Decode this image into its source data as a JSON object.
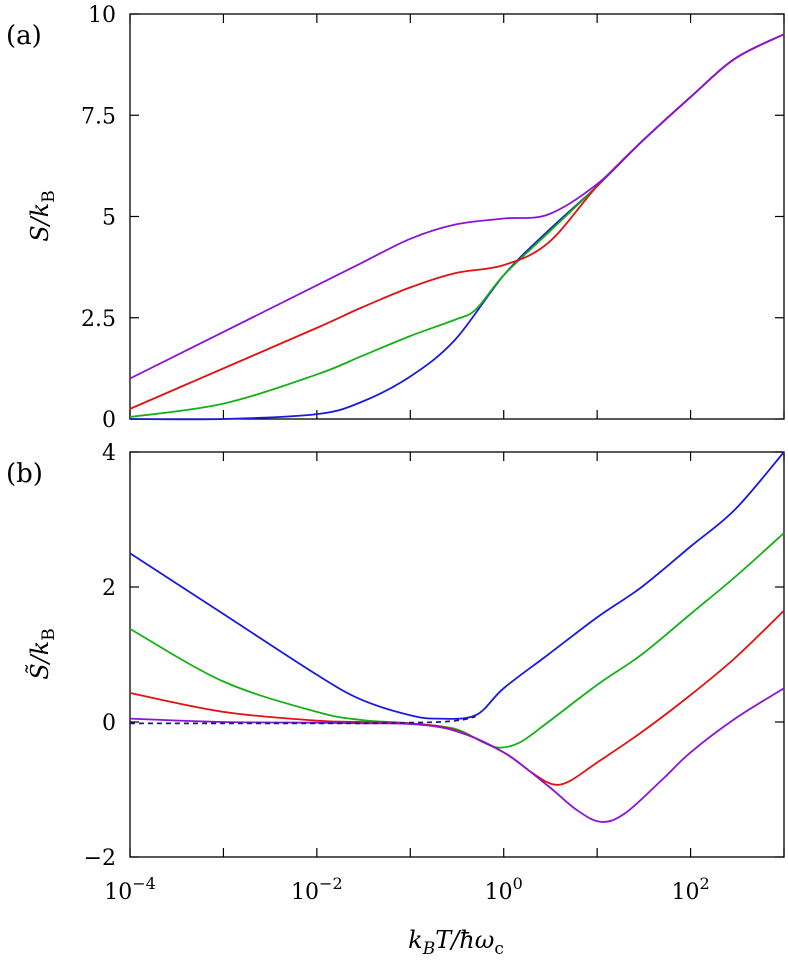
{
  "chart_data": [
    {
      "type": "line",
      "panel_label": "(a)",
      "ylabel": "S/k_B",
      "xscale": "log",
      "xlim": [
        0.0001,
        1000
      ],
      "ylim": [
        0,
        10
      ],
      "yticks": [
        0,
        2.5,
        5,
        7.5,
        10
      ],
      "ytick_labels": [
        "0",
        "2.5",
        "5",
        "7.5",
        "10"
      ],
      "xticks_show_labels": false,
      "grid": false,
      "series": [
        {
          "color": "#1a1adf",
          "x": [
            0.0001,
            0.001,
            0.01,
            0.03,
            0.1,
            0.3,
            1,
            3,
            10,
            30,
            100,
            300,
            1000
          ],
          "y": [
            0.0,
            0.0,
            0.12,
            0.42,
            1.05,
            1.95,
            3.55,
            4.65,
            5.75,
            6.85,
            7.95,
            8.9,
            9.5
          ]
        },
        {
          "color": "#16b016",
          "x": [
            0.0001,
            0.001,
            0.01,
            0.03,
            0.1,
            0.3,
            0.5,
            1,
            3,
            10,
            30,
            100,
            300,
            1000
          ],
          "y": [
            0.05,
            0.38,
            1.1,
            1.55,
            2.05,
            2.45,
            2.7,
            3.55,
            4.6,
            5.75,
            6.85,
            7.95,
            8.9,
            9.5
          ]
        },
        {
          "color": "#e01212",
          "x": [
            0.0001,
            0.001,
            0.01,
            0.03,
            0.1,
            0.3,
            1,
            3,
            10,
            30,
            100,
            300,
            1000
          ],
          "y": [
            0.25,
            1.25,
            2.25,
            2.75,
            3.25,
            3.6,
            3.8,
            4.35,
            5.75,
            6.85,
            7.95,
            8.9,
            9.5
          ]
        },
        {
          "color": "#8a14d8",
          "x": [
            0.0001,
            0.001,
            0.01,
            0.03,
            0.1,
            0.3,
            1,
            3,
            10,
            30,
            100,
            300,
            1000
          ],
          "y": [
            1.0,
            2.15,
            3.3,
            3.85,
            4.45,
            4.8,
            4.95,
            5.05,
            5.8,
            6.85,
            7.95,
            8.9,
            9.5
          ]
        }
      ]
    },
    {
      "type": "line",
      "panel_label": "(b)",
      "ylabel": "S̃/k_B",
      "xlabel": "k_BT/ħω_c",
      "xscale": "log",
      "xlim": [
        0.0001,
        1000
      ],
      "ylim": [
        -2,
        4
      ],
      "yticks": [
        -2,
        0,
        2,
        4
      ],
      "ytick_labels": [
        "−2",
        "0",
        "2",
        "4"
      ],
      "xticks": [
        0.0001,
        0.01,
        1,
        100
      ],
      "xtick_labels": [
        "10−4",
        "10−2",
        "100",
        "102"
      ],
      "grid": false,
      "series": [
        {
          "color": "#1a1adf",
          "x": [
            0.0001,
            0.001,
            0.01,
            0.03,
            0.1,
            0.2,
            0.5,
            1,
            3,
            10,
            30,
            100,
            300,
            1000
          ],
          "y": [
            2.5,
            1.6,
            0.7,
            0.33,
            0.1,
            0.05,
            0.1,
            0.5,
            1.0,
            1.55,
            2.0,
            2.6,
            3.15,
            4.0
          ]
        },
        {
          "color": "#16b016",
          "x": [
            0.0001,
            0.001,
            0.01,
            0.03,
            0.1,
            0.3,
            0.6,
            0.9,
            1.5,
            3,
            10,
            30,
            100,
            300,
            1000
          ],
          "y": [
            1.38,
            0.6,
            0.15,
            0.03,
            -0.02,
            -0.1,
            -0.3,
            -0.38,
            -0.3,
            0.0,
            0.55,
            1.0,
            1.6,
            2.15,
            2.8
          ]
        },
        {
          "color": "#e01212",
          "x": [
            0.0001,
            0.001,
            0.01,
            0.03,
            0.1,
            0.3,
            1,
            2,
            3.3,
            5,
            10,
            30,
            100,
            300,
            1000
          ],
          "y": [
            0.43,
            0.15,
            0.02,
            0.0,
            -0.02,
            -0.12,
            -0.45,
            -0.75,
            -0.92,
            -0.88,
            -0.6,
            -0.15,
            0.4,
            0.95,
            1.65
          ]
        },
        {
          "color": "#8a14d8",
          "x": [
            0.0001,
            0.001,
            0.01,
            0.03,
            0.1,
            0.3,
            1,
            3,
            6,
            11,
            20,
            50,
            100,
            300,
            1000
          ],
          "y": [
            0.05,
            0.0,
            -0.01,
            -0.02,
            -0.03,
            -0.13,
            -0.45,
            -0.95,
            -1.3,
            -1.48,
            -1.35,
            -0.85,
            -0.45,
            0.05,
            0.5
          ]
        },
        {
          "color": "#1a1a8a",
          "dashed": true,
          "x": [
            0.0001,
            0.001,
            0.01,
            0.03,
            0.1,
            0.2,
            0.35,
            0.5
          ],
          "y": [
            -0.02,
            -0.02,
            -0.02,
            -0.02,
            -0.01,
            0.0,
            0.03,
            0.08
          ]
        }
      ]
    }
  ]
}
